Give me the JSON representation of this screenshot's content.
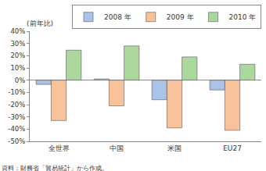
{
  "chart_data": {
    "type": "bar",
    "ylabel": "(前年比)",
    "annotations": [
      "資料：財務省「貿易統計」から作成。"
    ],
    "categories": [
      "全世界",
      "中国",
      "米国",
      "EU27"
    ],
    "series": [
      {
        "name": "2008 年",
        "color": "#aac3e6",
        "values": [
          -3.5,
          1,
          -16,
          -8
        ]
      },
      {
        "name": "2009 年",
        "color": "#f8c39b",
        "values": [
          -33,
          -21,
          -39,
          -41
        ]
      },
      {
        "name": "2010 年",
        "color": "#acd89e",
        "values": [
          24.5,
          28,
          19,
          13
        ]
      }
    ],
    "ylim": [
      -50,
      40
    ],
    "yticks": [
      {
        "value": -50,
        "label": "-50%"
      },
      {
        "value": -40,
        "label": "-40%"
      },
      {
        "value": -30,
        "label": "-30%"
      },
      {
        "value": -20,
        "label": "-20%"
      },
      {
        "value": -10,
        "label": "-10%"
      },
      {
        "value": 0,
        "label": "0%"
      },
      {
        "value": 10,
        "label": "10%"
      },
      {
        "value": 20,
        "label": "20%"
      },
      {
        "value": 30,
        "label": "30%"
      },
      {
        "value": 40,
        "label": "40%"
      }
    ],
    "grid": false,
    "legend": "top right"
  }
}
